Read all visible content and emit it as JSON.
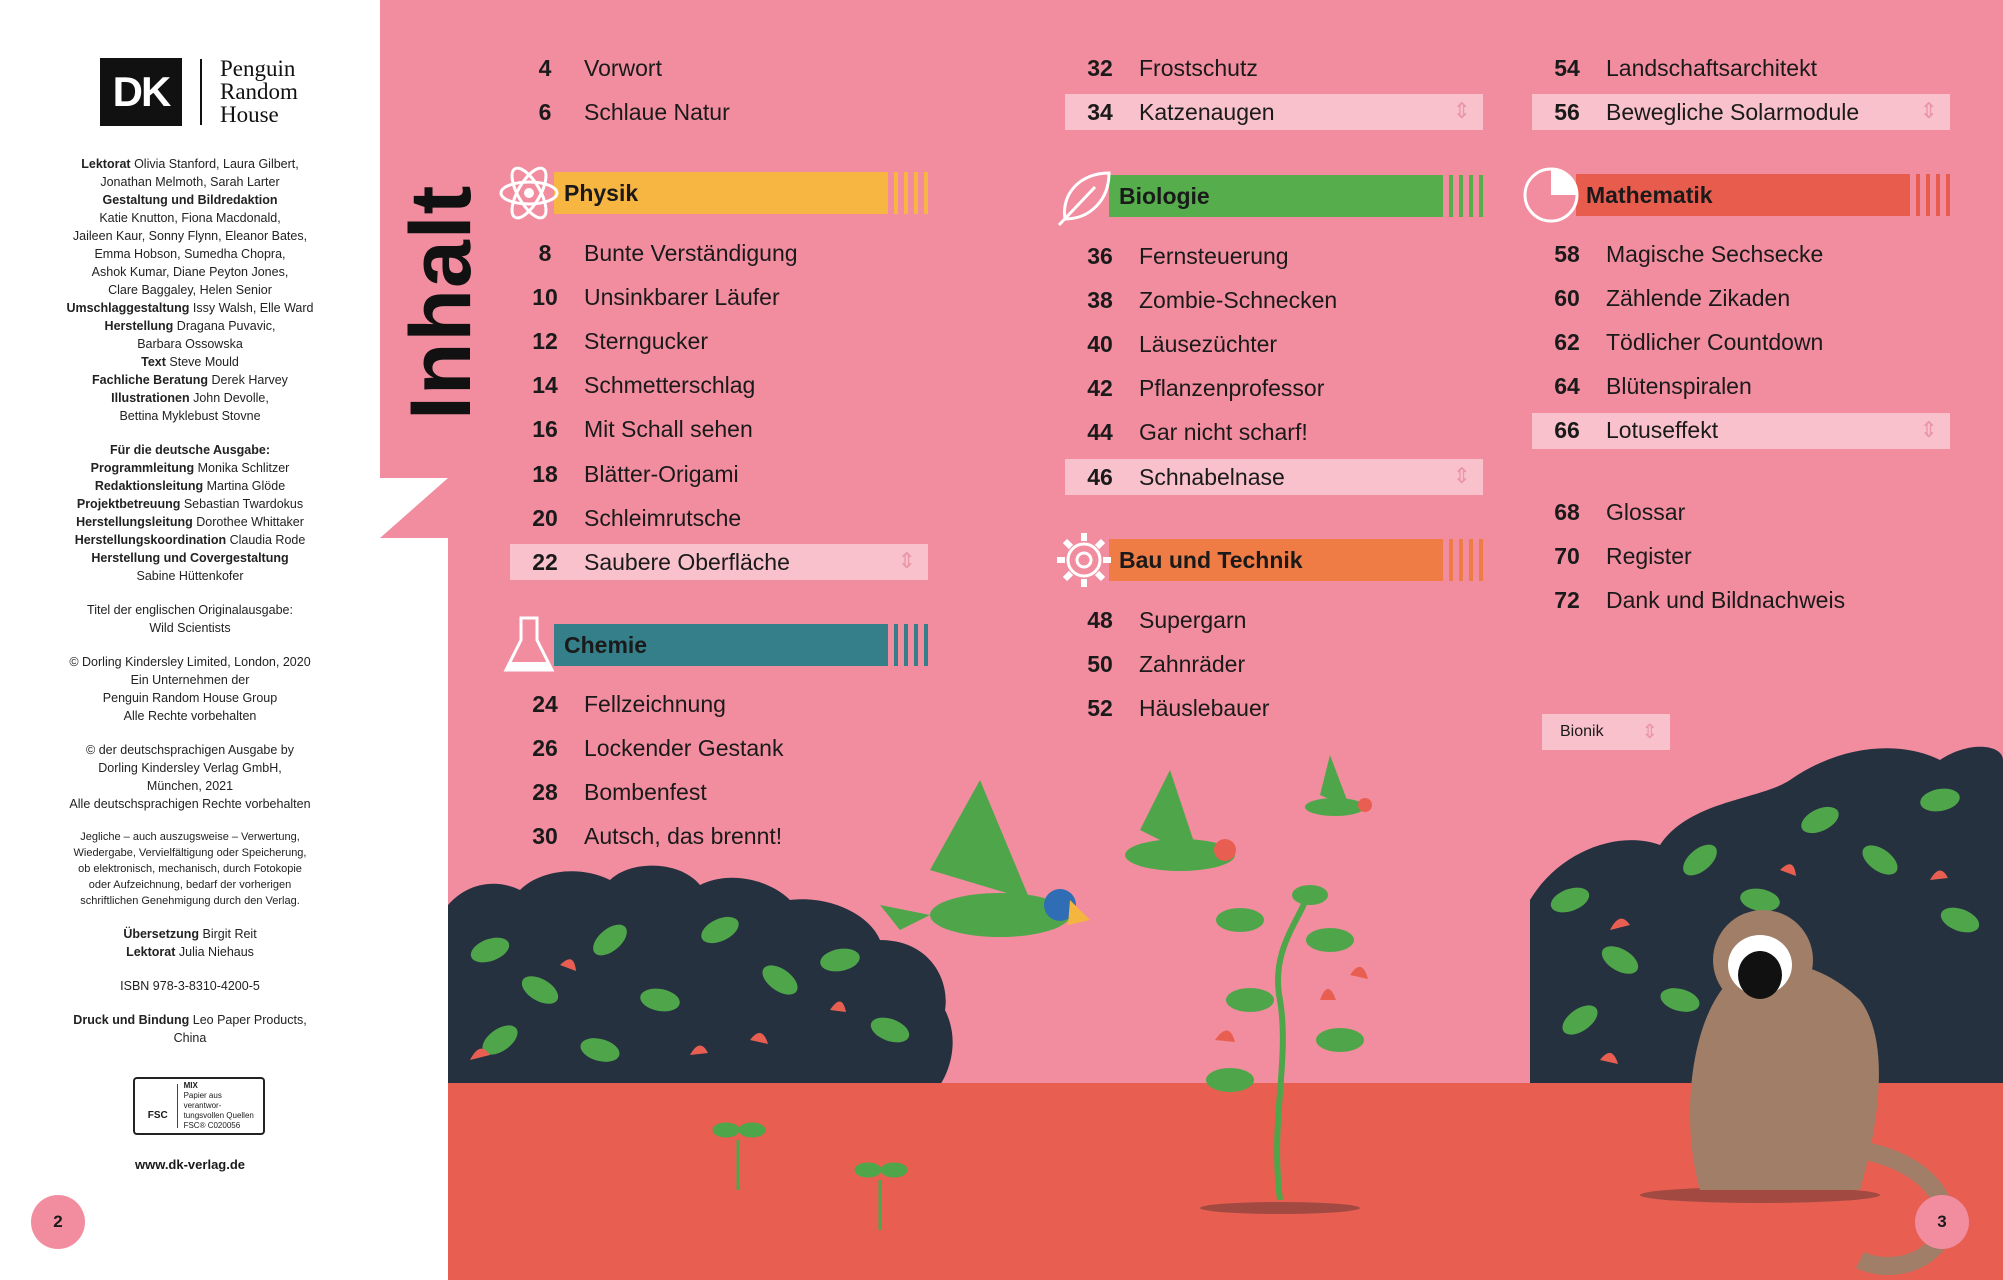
{
  "publisher": {
    "logo_text": "DK",
    "prh_line1": "Penguin",
    "prh_line2": "Random",
    "prh_line3": "House"
  },
  "imprint": {
    "lines": [
      {
        "label": "Lektorat",
        "text": "Olivia Stanford, Laura Gilbert,"
      },
      {
        "label": "",
        "text": "Jonathan Melmoth, Sarah Larter"
      },
      {
        "label": "",
        "text": "Gestaltung und Bildredaktion"
      },
      {
        "label": "",
        "text": "Katie Knutton, Fiona Macdonald,"
      },
      {
        "label": "",
        "text": "Jaileen Kaur, Sonny Flynn, Eleanor Bates,"
      },
      {
        "label": "",
        "text": "Emma Hobson, Sumedha Chopra,"
      },
      {
        "label": "",
        "text": "Ashok Kumar, Diane Peyton Jones,"
      },
      {
        "label": "",
        "text": "Clare Baggaley, Helen Senior"
      },
      {
        "label": "Umschlaggestaltung",
        "text": "Issy Walsh, Elle Ward"
      },
      {
        "label": "Herstellung",
        "text": "Dragana Puvavic,"
      },
      {
        "label": "",
        "text": "Barbara Ossowska"
      },
      {
        "label": "Text",
        "text": "Steve Mould"
      },
      {
        "label": "Fachliche Beratung",
        "text": "Derek Harvey"
      },
      {
        "label": "Illustrationen",
        "text": "John Devolle,"
      },
      {
        "label": "",
        "text": "Bettina Myklebust Stovne"
      }
    ],
    "de_heading": "Für die deutsche Ausgabe:",
    "de_lines": [
      {
        "label": "Programmleitung",
        "text": "Monika Schlitzer"
      },
      {
        "label": "Redaktionsleitung",
        "text": "Martina Glöde"
      },
      {
        "label": "Projektbetreuung",
        "text": "Sebastian Twardokus"
      },
      {
        "label": "Herstellungsleitung",
        "text": "Dorothee Whittaker"
      },
      {
        "label": "Herstellungskoordination",
        "text": "Claudia Rode"
      },
      {
        "label": "Herstellung und Covergestaltung",
        "text": ""
      },
      {
        "label": "",
        "text": "Sabine Hüttenkofer"
      }
    ],
    "original_title_1": "Titel der englischen Originalausgabe:",
    "original_title_2": "Wild Scientists",
    "copyright_uk": [
      "© Dorling Kindersley Limited, London, 2020",
      "Ein Unternehmen der",
      "Penguin Random House Group",
      "Alle Rechte vorbehalten"
    ],
    "copyright_de": [
      "© der deutschsprachigen Ausgabe by",
      "Dorling Kindersley Verlag GmbH,",
      "München, 2021",
      "Alle deutschsprachigen Rechte vorbehalten"
    ],
    "legal": [
      "Jegliche – auch auszugsweise – Verwertung,",
      "Wiedergabe, Vervielfältigung oder Speicherung,",
      "ob elektronisch, mechanisch, durch Fotokopie",
      "oder Aufzeichnung, bedarf der vorherigen",
      "schriftlichen Genehmigung durch den Verlag."
    ],
    "translation": [
      {
        "label": "Übersetzung",
        "text": "Birgit Reit"
      },
      {
        "label": "Lektorat",
        "text": "Julia Niehaus"
      }
    ],
    "isbn": "ISBN 978-3-8310-4200-5",
    "print": [
      {
        "label": "Druck und Bindung",
        "text": "Leo Paper Products,"
      },
      {
        "label": "",
        "text": "China"
      }
    ],
    "fsc_mark": "FSC",
    "fsc_text": [
      "MIX",
      "Papier aus verantwor-",
      "tungsvollen Quellen",
      "FSC® C020056"
    ],
    "website": "www.dk-verlag.de"
  },
  "page_left": "2",
  "page_right": "3",
  "heading": "Inhalt",
  "toc": {
    "col1_top": [
      {
        "num": "4",
        "title": "Vorwort"
      },
      {
        "num": "6",
        "title": "Schlaue Natur"
      }
    ],
    "physik": {
      "label": "Physik",
      "color": "#f7b541",
      "entries": [
        {
          "num": "8",
          "title": "Bunte Verständigung"
        },
        {
          "num": "10",
          "title": "Unsinkbarer Läufer"
        },
        {
          "num": "12",
          "title": "Sterngucker"
        },
        {
          "num": "14",
          "title": "Schmetterschlag"
        },
        {
          "num": "16",
          "title": "Mit Schall sehen"
        },
        {
          "num": "18",
          "title": "Blätter-Origami"
        },
        {
          "num": "20",
          "title": "Schleimrutsche"
        },
        {
          "num": "22",
          "title": "Saubere Oberfläche"
        }
      ]
    },
    "chemie": {
      "label": "Chemie",
      "color": "#347f8a",
      "entries": [
        {
          "num": "24",
          "title": "Fellzeichnung"
        },
        {
          "num": "26",
          "title": "Lockender Gestank"
        },
        {
          "num": "28",
          "title": "Bombenfest"
        },
        {
          "num": "30",
          "title": "Autsch, das brennt!"
        }
      ]
    },
    "col2_top": [
      {
        "num": "32",
        "title": "Frostschutz"
      },
      {
        "num": "34",
        "title": "Katzenaugen"
      }
    ],
    "biologie": {
      "label": "Biologie",
      "color": "#55ad4c",
      "entries": [
        {
          "num": "36",
          "title": "Fernsteuerung"
        },
        {
          "num": "38",
          "title": "Zombie-Schnecken"
        },
        {
          "num": "40",
          "title": "Läusezüchter"
        },
        {
          "num": "42",
          "title": "Pflanzenprofessor"
        },
        {
          "num": "44",
          "title": "Gar nicht scharf!"
        },
        {
          "num": "46",
          "title": "Schnabelnase"
        }
      ]
    },
    "technik": {
      "label": "Bau und Technik",
      "color": "#ef7c45",
      "entries": [
        {
          "num": "48",
          "title": "Supergarn"
        },
        {
          "num": "50",
          "title": "Zahnräder"
        },
        {
          "num": "52",
          "title": "Häuslebauer"
        }
      ]
    },
    "col3_top": [
      {
        "num": "54",
        "title": "Landschaftsarchitekt"
      },
      {
        "num": "56",
        "title": "Bewegliche Solarmodule"
      }
    ],
    "mathematik": {
      "label": "Mathematik",
      "color": "#e85c4e",
      "entries": [
        {
          "num": "58",
          "title": "Magische Sechsecke"
        },
        {
          "num": "60",
          "title": "Zählende Zikaden"
        },
        {
          "num": "62",
          "title": "Tödlicher Countdown"
        },
        {
          "num": "64",
          "title": "Blütenspiralen"
        },
        {
          "num": "66",
          "title": "Lotuseffekt"
        }
      ]
    },
    "appendix": [
      {
        "num": "68",
        "title": "Glossar"
      },
      {
        "num": "70",
        "title": "Register"
      },
      {
        "num": "72",
        "title": "Dank und Bildnachweis"
      }
    ]
  },
  "legend_label": "Bionik",
  "colors": {
    "background": "#f28da0",
    "highlight": "#f8c1cc",
    "ground": "#e85f52",
    "bush": "#263140"
  }
}
